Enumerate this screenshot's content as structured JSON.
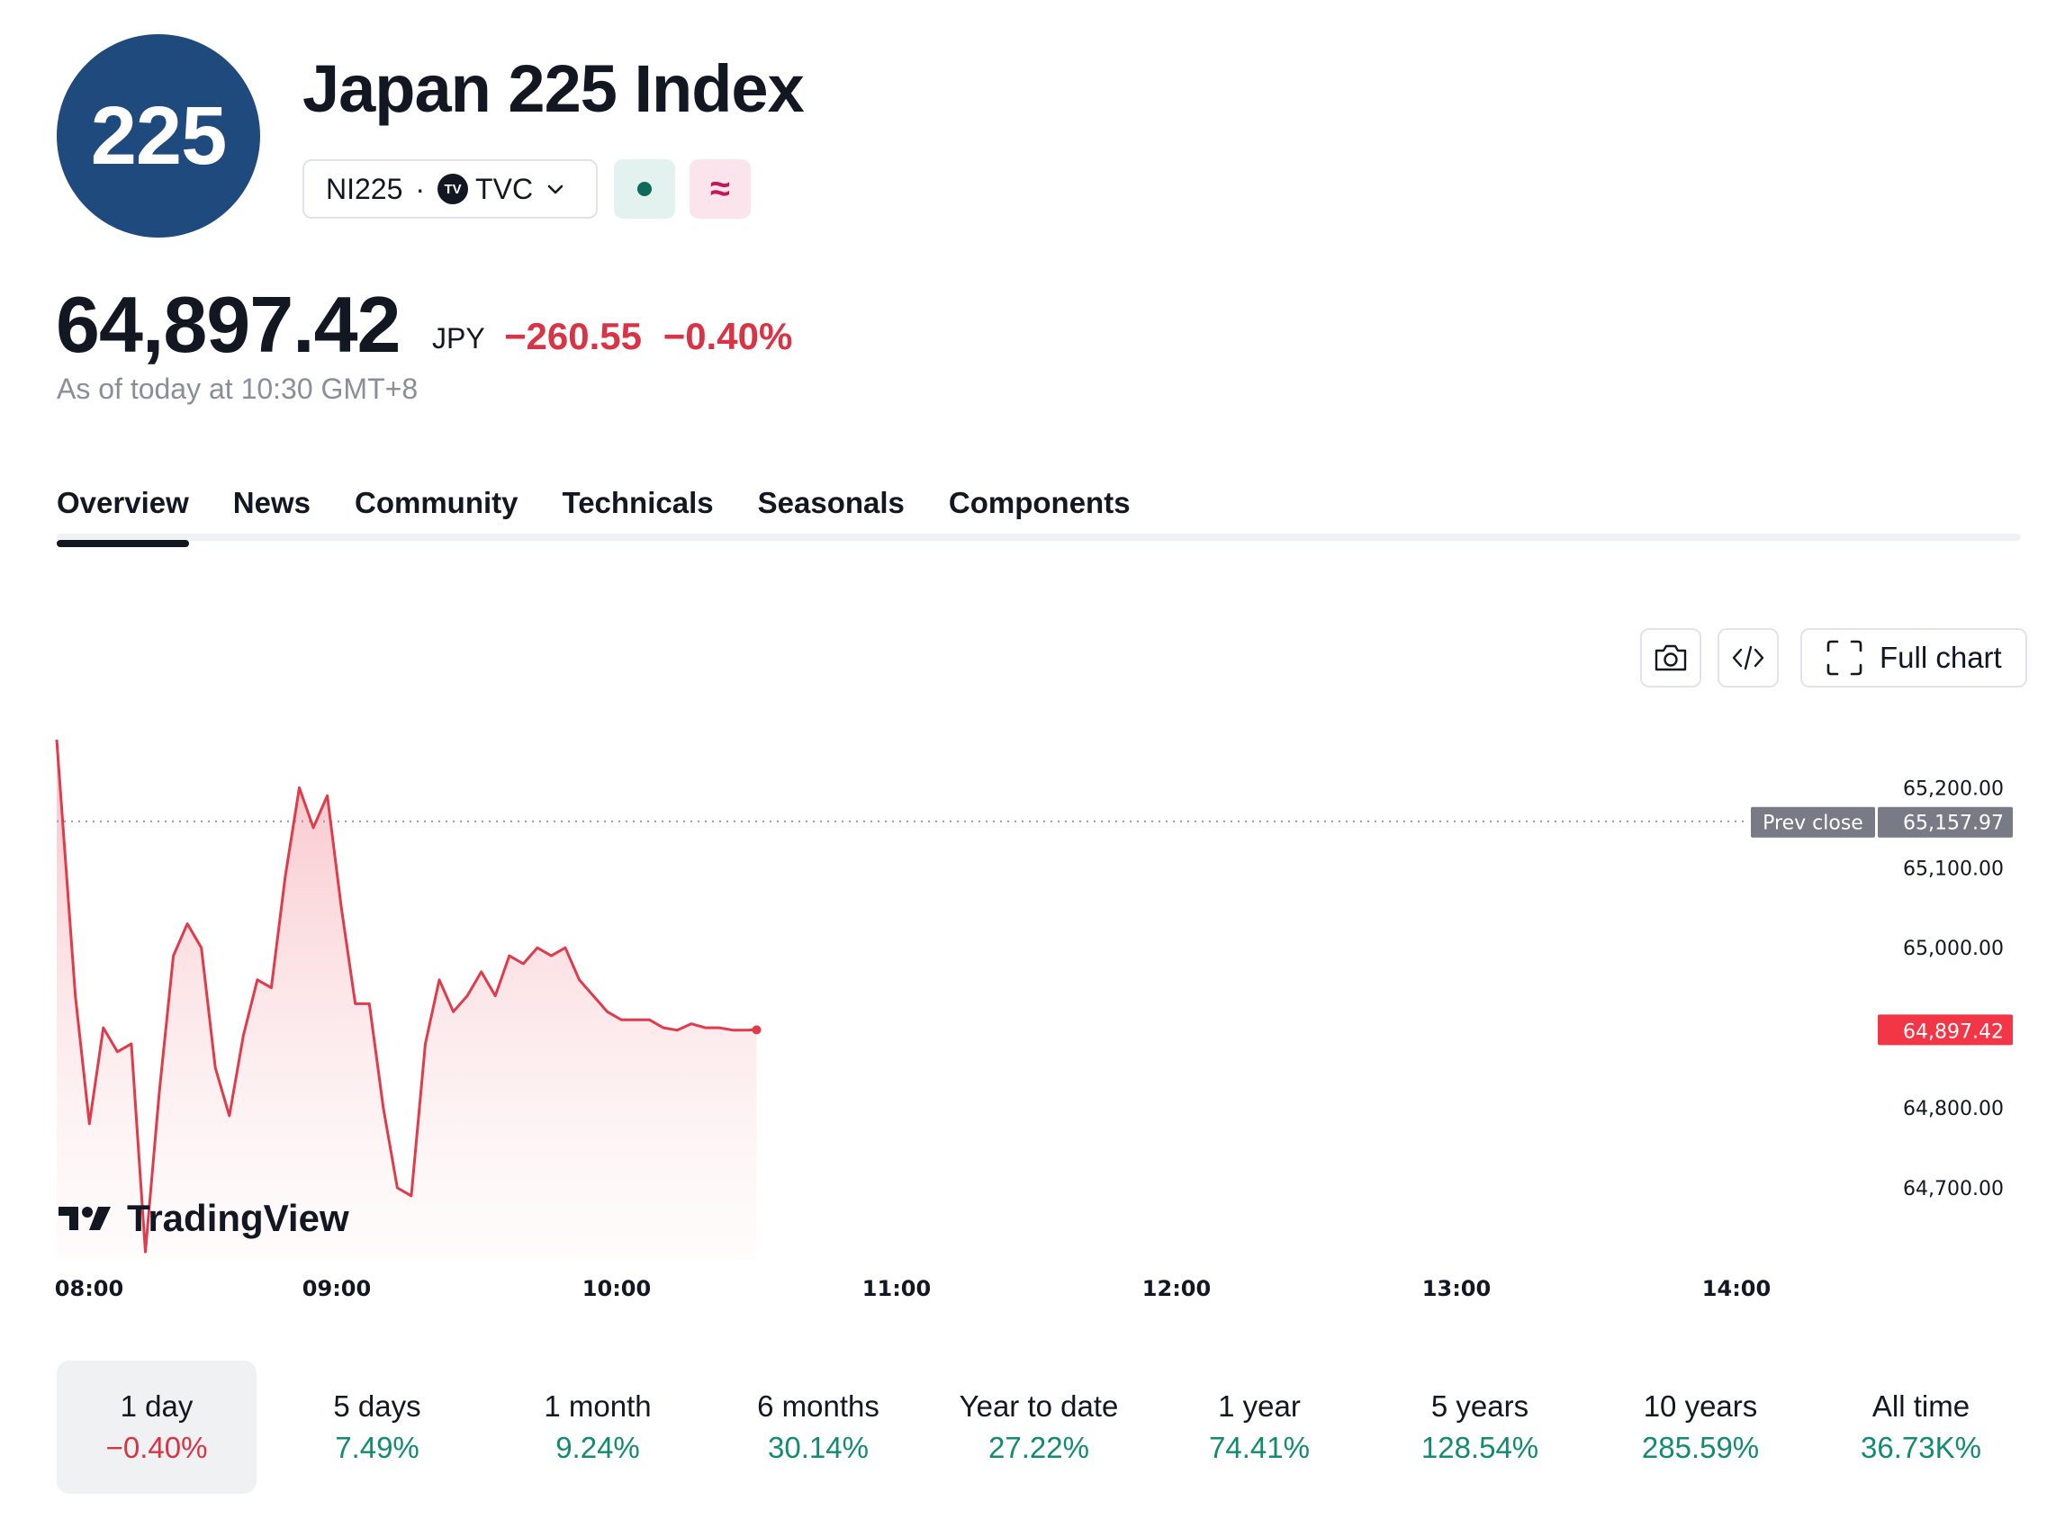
{
  "header": {
    "logo_text": "225",
    "title": "Japan 225 Index",
    "symbol": "NI225",
    "separator": "·",
    "exchange_logo": "TV",
    "exchange": "TVC",
    "status_icon": "market-open-dot",
    "delay_icon": "≈"
  },
  "quote": {
    "price": "64,897.42",
    "currency": "JPY",
    "change_abs": "−260.55",
    "change_pct": "−0.40%",
    "as_of": "As of today at 10:30 GMT+8"
  },
  "tabs": [
    {
      "label": "Overview",
      "active": true
    },
    {
      "label": "News"
    },
    {
      "label": "Community"
    },
    {
      "label": "Technicals"
    },
    {
      "label": "Seasonals"
    },
    {
      "label": "Components"
    }
  ],
  "toolbar": {
    "snapshot_icon": "camera-icon",
    "embed_icon": "code-icon",
    "full_chart_label": "Full chart"
  },
  "brand": "TradingView",
  "chart_data": {
    "type": "area",
    "series": [
      {
        "color": "#e03b4b",
        "x": [
          "08:00",
          "08:04",
          "08:07",
          "08:10",
          "08:13",
          "08:16",
          "08:19",
          "08:22",
          "08:25",
          "08:28",
          "08:31",
          "08:34",
          "08:37",
          "08:40",
          "08:43",
          "08:46",
          "08:49",
          "08:52",
          "08:55",
          "08:58",
          "09:01",
          "09:04",
          "09:07",
          "09:10",
          "09:13",
          "09:16",
          "09:19",
          "09:22",
          "09:25",
          "09:28",
          "09:31",
          "09:34",
          "09:37",
          "09:40",
          "09:43",
          "09:46",
          "09:49",
          "09:52",
          "09:55",
          "09:58",
          "10:01",
          "10:04",
          "10:07",
          "10:10",
          "10:13",
          "10:16",
          "10:19",
          "10:22",
          "10:25",
          "10:28",
          "10:30"
        ],
        "values": [
          65260,
          64940,
          64780,
          64900,
          64870,
          64880,
          64620,
          64820,
          64990,
          65030,
          65000,
          64850,
          64790,
          64890,
          64960,
          64950,
          65090,
          65200,
          65150,
          65190,
          65050,
          64930,
          64930,
          64800,
          64700,
          64690,
          64880,
          64960,
          64920,
          64940,
          64970,
          64940,
          64990,
          64980,
          65000,
          64990,
          65000,
          64960,
          64940,
          64920,
          64910,
          64910,
          64910,
          64900,
          64897,
          64905,
          64900,
          64900,
          64897,
          64897,
          64897.42
        ]
      }
    ],
    "prev_close_label": "Prev close",
    "prev_close": 65157.97,
    "last_value": 64897.42,
    "last_value_label": "64,897.42",
    "prev_close_value_label": "65,157.97",
    "y_ticks": [
      {
        "label": "65,200.00",
        "value": 65200
      },
      {
        "label": "65,100.00",
        "value": 65100
      },
      {
        "label": "65,000.00",
        "value": 65000
      },
      {
        "label": "64,800.00",
        "value": 64800
      },
      {
        "label": "64,700.00",
        "value": 64700
      }
    ],
    "x_ticks": [
      "08:00",
      "09:00",
      "10:00",
      "11:00",
      "12:00",
      "13:00",
      "14:00"
    ],
    "ylim": [
      64610,
      65260
    ],
    "grid": false
  },
  "periods": [
    {
      "label": "1 day",
      "value": "−0.40%",
      "trend": "neg",
      "active": true
    },
    {
      "label": "5 days",
      "value": "7.49%",
      "trend": "pos"
    },
    {
      "label": "1 month",
      "value": "9.24%",
      "trend": "pos"
    },
    {
      "label": "6 months",
      "value": "30.14%",
      "trend": "pos"
    },
    {
      "label": "Year to date",
      "value": "27.22%",
      "trend": "pos"
    },
    {
      "label": "1 year",
      "value": "74.41%",
      "trend": "pos"
    },
    {
      "label": "5 years",
      "value": "128.54%",
      "trend": "pos"
    },
    {
      "label": "10 years",
      "value": "285.59%",
      "trend": "pos"
    },
    {
      "label": "All time",
      "value": "36.73K%",
      "trend": "pos"
    }
  ]
}
